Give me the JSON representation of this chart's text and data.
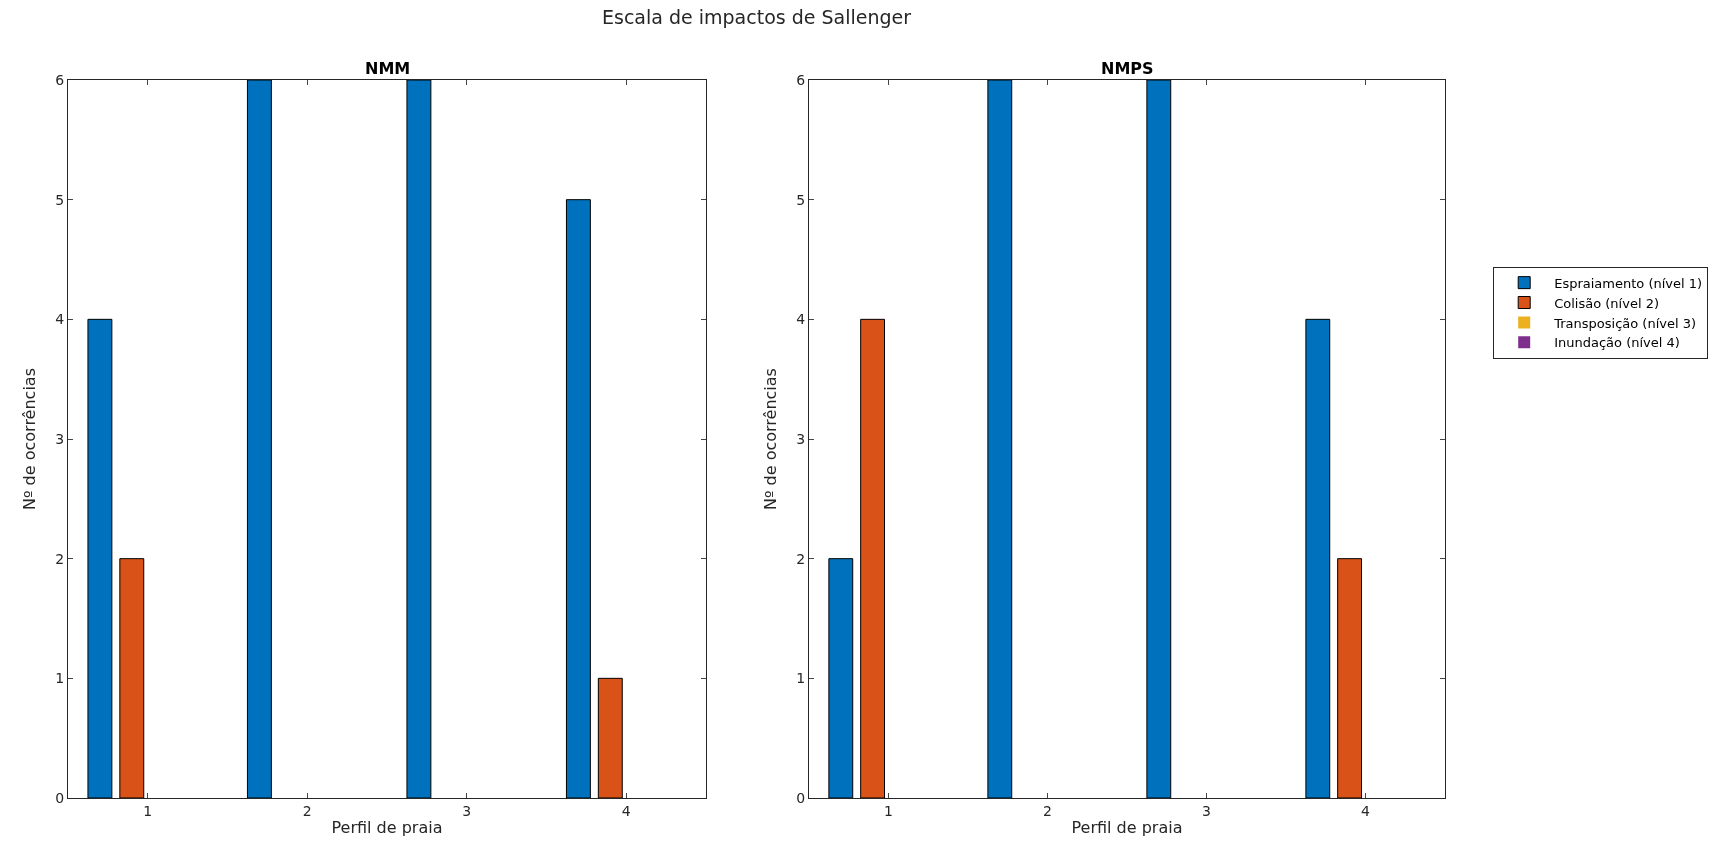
{
  "chart_data": [
    {
      "type": "bar",
      "title": "NMM",
      "xlabel": "Perfil de praia",
      "ylabel": "Nº de ocorrências",
      "categories": [
        "1",
        "2",
        "3",
        "4"
      ],
      "ylim": [
        0,
        6
      ],
      "yticks": [
        0,
        1,
        2,
        3,
        4,
        5,
        6
      ],
      "legend": false,
      "annotations": [
        "Escala de impactos de Sallenger"
      ],
      "series": [
        {
          "color": "#0072bd",
          "values": [
            4,
            6,
            6,
            5
          ]
        },
        {
          "color": "#d95319",
          "values": [
            2,
            0,
            0,
            1
          ]
        },
        {
          "color": "#edb120",
          "values": [
            0,
            0,
            0,
            0
          ]
        },
        {
          "color": "#7e2f8e",
          "values": [
            0,
            0,
            0,
            0
          ]
        }
      ]
    },
    {
      "type": "bar",
      "title": "NMPS",
      "xlabel": "Perfil de praia",
      "ylabel": "Nº de ocorrências",
      "categories": [
        "1",
        "2",
        "3",
        "4"
      ],
      "ylim": [
        0,
        6
      ],
      "yticks": [
        0,
        1,
        2,
        3,
        4,
        5,
        6
      ],
      "legend": "right",
      "series": [
        {
          "name": "Espraiamento (nível 1)",
          "color": "#0072bd",
          "values": [
            2,
            6,
            6,
            4
          ]
        },
        {
          "name": "Colisão (nível 2)",
          "color": "#d95319",
          "values": [
            4,
            0,
            0,
            2
          ]
        },
        {
          "name": "Transposição (nível 3)",
          "color": "#edb120",
          "values": [
            0,
            0,
            0,
            0
          ]
        },
        {
          "name": "Inundação (nível 4)",
          "color": "#7e2f8e",
          "values": [
            0,
            0,
            0,
            0
          ]
        }
      ]
    }
  ]
}
